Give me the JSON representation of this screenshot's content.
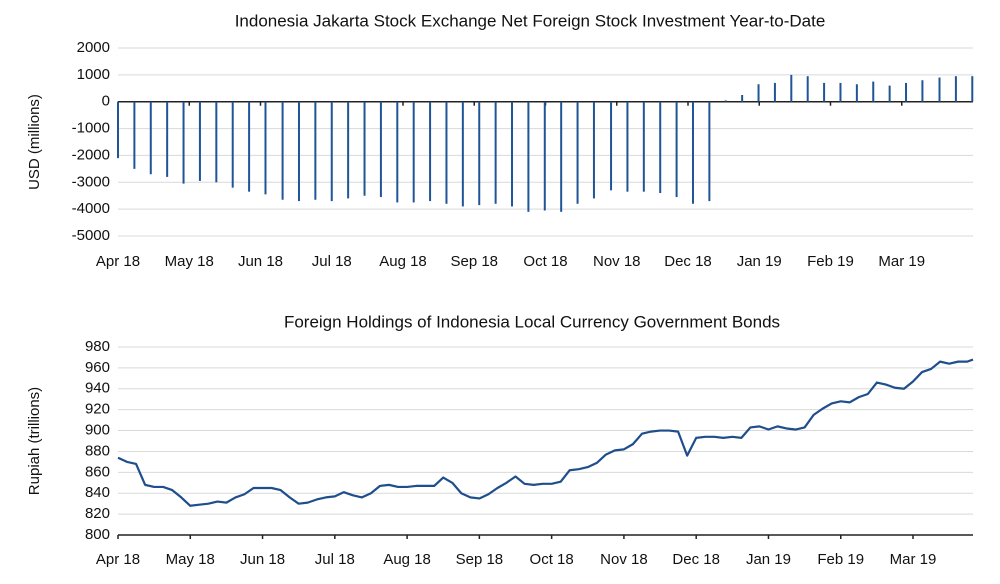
{
  "chart_data": [
    {
      "type": "bar",
      "title": "Indonesia Jakarta Stock Exchange Net Foreign Stock Investment Year-to-Date",
      "y_label": "USD (millions)",
      "x": [
        0,
        0.23,
        0.46,
        0.69,
        0.92,
        1.15,
        1.38,
        1.61,
        1.84,
        2.07,
        2.31,
        2.54,
        2.77,
        3.0,
        3.23,
        3.46,
        3.69,
        3.92,
        4.15,
        4.38,
        4.61,
        4.84,
        5.07,
        5.3,
        5.53,
        5.76,
        5.99,
        6.22,
        6.45,
        6.68,
        6.92,
        7.15,
        7.38,
        7.61,
        7.84,
        8.07,
        8.3,
        8.53,
        8.76,
        8.99,
        9.22,
        9.45,
        9.68,
        9.91,
        10.14,
        10.37,
        10.6,
        10.83,
        11.06,
        11.29,
        11.53,
        11.76,
        11.99
      ],
      "values": [
        -2100,
        -2500,
        -2700,
        -2800,
        -3050,
        -2950,
        -3000,
        -3200,
        -3350,
        -3450,
        -3650,
        -3700,
        -3650,
        -3700,
        -3600,
        -3500,
        -3550,
        -3750,
        -3750,
        -3700,
        -3800,
        -3900,
        -3850,
        -3800,
        -3900,
        -4100,
        -4050,
        -4100,
        -3800,
        -3600,
        -3300,
        -3350,
        -3350,
        -3400,
        -3550,
        -3800,
        -3700,
        50,
        250,
        650,
        700,
        1000,
        950,
        700,
        700,
        650,
        750,
        600,
        700,
        800,
        900,
        950,
        950
      ],
      "color": "#1f5597",
      "xlim": [
        0,
        12
      ],
      "xticks": [
        {
          "value": 0,
          "label": "Apr 18"
        },
        {
          "value": 1,
          "label": "May 18"
        },
        {
          "value": 2,
          "label": "Jun 18"
        },
        {
          "value": 3,
          "label": "Jul 18"
        },
        {
          "value": 4,
          "label": "Aug 18"
        },
        {
          "value": 5,
          "label": "Sep 18"
        },
        {
          "value": 6,
          "label": "Oct 18"
        },
        {
          "value": 7,
          "label": "Nov 18"
        },
        {
          "value": 8,
          "label": "Dec 18"
        },
        {
          "value": 9,
          "label": "Jan 19"
        },
        {
          "value": 10,
          "label": "Feb 19"
        },
        {
          "value": 11,
          "label": "Mar 19"
        }
      ],
      "ylim": [
        -5000,
        2000
      ],
      "yticks": [
        2000,
        1000,
        0,
        -1000,
        -2000,
        -3000,
        -4000,
        -5000
      ],
      "grid": true
    },
    {
      "type": "line",
      "title": "Foreign Holdings of Indonesia Local Currency Government Bonds",
      "y_label": "Rupiah (trillions)",
      "x": [
        0,
        0.125,
        0.25,
        0.375,
        0.5,
        0.625,
        0.75,
        0.875,
        1,
        1.125,
        1.25,
        1.375,
        1.5,
        1.625,
        1.75,
        1.875,
        2,
        2.125,
        2.25,
        2.375,
        2.5,
        2.625,
        2.75,
        2.875,
        3,
        3.125,
        3.25,
        3.375,
        3.5,
        3.625,
        3.75,
        3.875,
        4,
        4.125,
        4.25,
        4.375,
        4.5,
        4.625,
        4.75,
        4.875,
        5,
        5.125,
        5.25,
        5.375,
        5.5,
        5.625,
        5.75,
        5.875,
        6,
        6.125,
        6.25,
        6.375,
        6.5,
        6.625,
        6.75,
        6.875,
        7,
        7.125,
        7.25,
        7.375,
        7.5,
        7.625,
        7.75,
        7.875,
        8,
        8.125,
        8.25,
        8.375,
        8.5,
        8.625,
        8.75,
        8.875,
        9,
        9.125,
        9.25,
        9.375,
        9.5,
        9.625,
        9.75,
        9.875,
        10,
        10.125,
        10.25,
        10.375,
        10.5,
        10.625,
        10.75,
        10.875,
        11,
        11.125,
        11.25,
        11.375,
        11.5,
        11.625,
        11.75,
        11.83
      ],
      "values": [
        874,
        870,
        868,
        848,
        846,
        846,
        843,
        836,
        828,
        829,
        830,
        832,
        831,
        836,
        839,
        845,
        845,
        845,
        843,
        836,
        830,
        831,
        834,
        836,
        837,
        841,
        838,
        836,
        840,
        847,
        848,
        846,
        846,
        847,
        847,
        847,
        855,
        850,
        840,
        836,
        835,
        839,
        845,
        850,
        856,
        849,
        848,
        849,
        849,
        851,
        862,
        863,
        865,
        869,
        877,
        881,
        882,
        887,
        897,
        899,
        900,
        900,
        899,
        876,
        893,
        894,
        894,
        893,
        894,
        893,
        903,
        904,
        901,
        904,
        902,
        901,
        903,
        915,
        921,
        926,
        928,
        927,
        932,
        935,
        946,
        944,
        941,
        940,
        947,
        956,
        959,
        966,
        964,
        966,
        966,
        968
      ],
      "color": "#1f4e8c",
      "xlim": [
        0,
        11.83
      ],
      "xticks": [
        {
          "value": 0,
          "label": "Apr 18"
        },
        {
          "value": 1,
          "label": "May 18"
        },
        {
          "value": 2,
          "label": "Jun 18"
        },
        {
          "value": 3,
          "label": "Jul 18"
        },
        {
          "value": 4,
          "label": "Aug 18"
        },
        {
          "value": 5,
          "label": "Sep 18"
        },
        {
          "value": 6,
          "label": "Oct 18"
        },
        {
          "value": 7,
          "label": "Nov 18"
        },
        {
          "value": 8,
          "label": "Dec 18"
        },
        {
          "value": 9,
          "label": "Jan 19"
        },
        {
          "value": 10,
          "label": "Feb 19"
        },
        {
          "value": 11,
          "label": "Mar 19"
        }
      ],
      "ylim": [
        800,
        980
      ],
      "yticks": [
        980,
        960,
        940,
        920,
        900,
        880,
        860,
        840,
        820,
        800
      ],
      "grid": true
    }
  ]
}
